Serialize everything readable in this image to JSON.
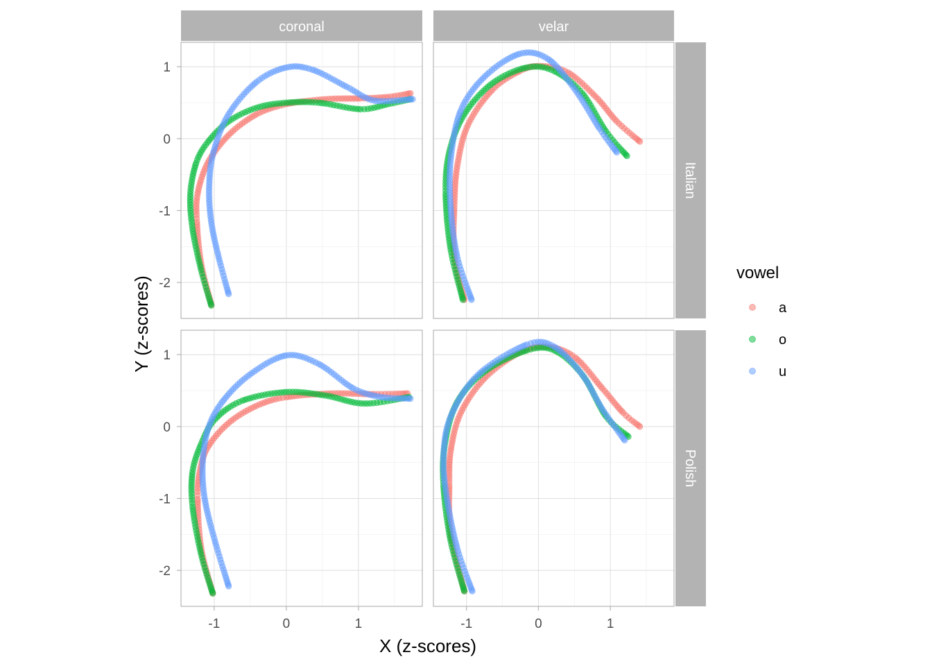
{
  "chart_data": {
    "type": "scatter",
    "xlabel": "X (z-scores)",
    "ylabel": "Y (z-scores)",
    "xlim": [
      -1.46,
      1.885
    ],
    "ylim": [
      -2.5,
      1.34
    ],
    "x_ticks": [
      -1,
      0,
      1
    ],
    "y_ticks": [
      1,
      0,
      -1,
      -2
    ],
    "x_tick_labels": [
      "-1",
      "0",
      "1"
    ],
    "y_tick_labels": [
      "1",
      "0",
      "-1",
      "-2"
    ],
    "grid": true,
    "col_facets": [
      "coronal",
      "velar"
    ],
    "row_facets": [
      "Italian",
      "Polish"
    ],
    "legend": {
      "title": "vowel",
      "position": "right",
      "entries": [
        "a",
        "o",
        "u"
      ]
    },
    "colors": {
      "a": "#F8766D",
      "o": "#00BA38",
      "u": "#619CFF"
    },
    "point_alpha": 0.5,
    "panels": [
      {
        "col": "coronal",
        "row": "Italian",
        "series": [
          {
            "name": "a",
            "x": [
              -1.04,
              -1.18,
              -1.24,
              -1.23,
              -1.09,
              -0.8,
              -0.41,
              0,
              0.55,
              1.03,
              1.41,
              1.72
            ],
            "y": [
              -2.31,
              -1.74,
              -1.16,
              -0.77,
              -0.34,
              0.05,
              0.34,
              0.48,
              0.55,
              0.56,
              0.58,
              0.63
            ]
          },
          {
            "name": "o",
            "x": [
              -1.04,
              -1.18,
              -1.3,
              -1.33,
              -1.25,
              -1.09,
              -0.8,
              -0.41,
              0,
              0.45,
              1.03,
              1.41,
              1.72
            ],
            "y": [
              -2.32,
              -1.83,
              -1.25,
              -0.77,
              -0.34,
              -0.05,
              0.24,
              0.43,
              0.5,
              0.5,
              0.41,
              0.48,
              0.55
            ]
          },
          {
            "name": "u",
            "x": [
              -0.8,
              -0.94,
              -1.04,
              -1.07,
              -1.01,
              -0.8,
              -0.41,
              0,
              0.36,
              0.84,
              1.22,
              1.75
            ],
            "y": [
              -2.16,
              -1.64,
              -1.16,
              -0.68,
              -0.19,
              0.34,
              0.79,
              0.99,
              0.96,
              0.72,
              0.53,
              0.55
            ]
          }
        ]
      },
      {
        "col": "velar",
        "row": "Italian",
        "series": [
          {
            "name": "a",
            "x": [
              -1.03,
              -1.17,
              -1.17,
              -1.13,
              -0.98,
              -0.64,
              -0.26,
              0.03,
              0.41,
              0.8,
              1.09,
              1.41
            ],
            "y": [
              -2.24,
              -1.64,
              -0.96,
              -0.39,
              0.19,
              0.68,
              0.94,
              1.01,
              0.92,
              0.58,
              0.24,
              -0.04
            ]
          },
          {
            "name": "o",
            "x": [
              -1.05,
              -1.22,
              -1.29,
              -1.24,
              -1.03,
              -0.64,
              -0.16,
              0.22,
              0.61,
              0.94,
              1.23
            ],
            "y": [
              -2.24,
              -1.54,
              -0.77,
              -0.19,
              0.34,
              0.77,
              0.99,
              0.94,
              0.63,
              0.1,
              -0.24
            ]
          },
          {
            "name": "u",
            "x": [
              -0.93,
              -1.13,
              -1.22,
              -1.22,
              -1.08,
              -0.74,
              -0.26,
              0.13,
              0.51,
              0.85,
              1.09
            ],
            "y": [
              -2.24,
              -1.64,
              -0.96,
              -0.29,
              0.39,
              0.87,
              1.18,
              1.11,
              0.68,
              0.14,
              -0.19
            ]
          }
        ]
      },
      {
        "col": "coronal",
        "row": "Polish",
        "series": [
          {
            "name": "a",
            "x": [
              -1.02,
              -1.18,
              -1.23,
              -1.2,
              -1.09,
              -0.8,
              -0.41,
              0,
              0.64,
              1.22,
              1.68
            ],
            "y": [
              -2.32,
              -1.69,
              -1.01,
              -0.63,
              -0.29,
              0.05,
              0.29,
              0.41,
              0.46,
              0.45,
              0.46
            ]
          },
          {
            "name": "o",
            "x": [
              -1.02,
              -1.18,
              -1.3,
              -1.3,
              -1.18,
              -0.99,
              -0.61,
              0,
              0.55,
              1.08,
              1.7
            ],
            "y": [
              -2.32,
              -1.78,
              -1.11,
              -0.63,
              -0.24,
              0.1,
              0.36,
              0.48,
              0.43,
              0.32,
              0.41
            ]
          },
          {
            "name": "u",
            "x": [
              -0.8,
              -0.99,
              -1.13,
              -1.16,
              -1.09,
              -0.89,
              -0.51,
              0,
              0.45,
              0.93,
              1.32,
              1.72
            ],
            "y": [
              -2.22,
              -1.59,
              -1.01,
              -0.53,
              -0.05,
              0.34,
              0.72,
              0.99,
              0.87,
              0.53,
              0.41,
              0.39
            ]
          }
        ]
      },
      {
        "col": "velar",
        "row": "Polish",
        "series": [
          {
            "name": "a",
            "x": [
              -1.03,
              -1.22,
              -1.24,
              -1.22,
              -1.08,
              -0.74,
              -0.26,
              0.13,
              0.51,
              0.89,
              1.18,
              1.41
            ],
            "y": [
              -2.29,
              -1.49,
              -0.82,
              -0.34,
              0.19,
              0.68,
              1.03,
              1.11,
              0.96,
              0.53,
              0.19,
              0
            ]
          },
          {
            "name": "o",
            "x": [
              -1.03,
              -1.22,
              -1.32,
              -1.3,
              -1.13,
              -0.74,
              -0.16,
              0.22,
              0.61,
              0.94,
              1.25
            ],
            "y": [
              -2.29,
              -1.59,
              -0.82,
              -0.24,
              0.34,
              0.77,
              1.06,
              1.06,
              0.72,
              0.14,
              -0.14
            ]
          },
          {
            "name": "u",
            "x": [
              -0.92,
              -1.13,
              -1.27,
              -1.32,
              -1.22,
              -0.84,
              -0.16,
              0.22,
              0.61,
              0.89,
              1.2
            ],
            "y": [
              -2.29,
              -1.69,
              -1.01,
              -0.43,
              0.14,
              0.72,
              1.14,
              1.11,
              0.72,
              0.24,
              -0.19
            ]
          }
        ]
      }
    ]
  }
}
